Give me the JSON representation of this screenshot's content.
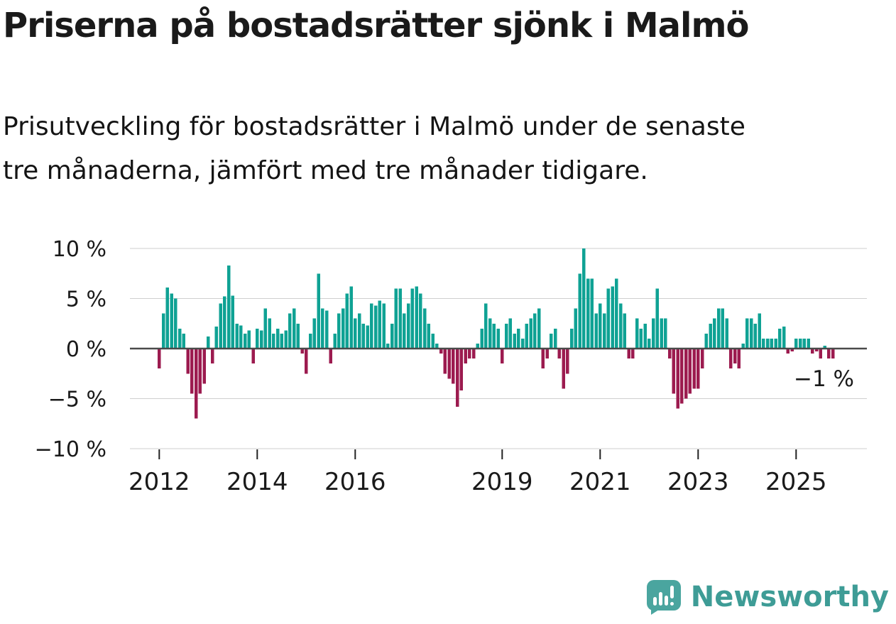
{
  "header": {
    "title": "Priserna på bostadsrätter sjönk i Malmö",
    "subtitle_lines": [
      "Prisutveckling för bostadsrätter i Malmö under de senaste",
      "tre månaderna, jämfört med tre månader tidigare."
    ]
  },
  "chart_data": {
    "type": "bar",
    "unit": "%",
    "frequency": "monthly",
    "start_month": "2012-01",
    "grid": true,
    "ylim": [
      -10,
      10
    ],
    "yticks": [
      {
        "label": "10 %",
        "value": 10
      },
      {
        "label": "5 %",
        "value": 5
      },
      {
        "label": "0 %",
        "value": 0
      },
      {
        "label": "−5 %",
        "value": -5
      },
      {
        "label": "−10 %",
        "value": -10
      }
    ],
    "xticks": [
      {
        "label": "2012",
        "year": 2012
      },
      {
        "label": "2014",
        "year": 2014
      },
      {
        "label": "2016",
        "year": 2016
      },
      {
        "label": "2019",
        "year": 2019
      },
      {
        "label": "2021",
        "year": 2021
      },
      {
        "label": "2023",
        "year": 2023
      },
      {
        "label": "2025",
        "year": 2025
      }
    ],
    "annotation": {
      "label": "−1 %",
      "value": -1
    },
    "colors": {
      "positive": "#0FA294",
      "negative": "#9C1B4F"
    },
    "values": [
      -2.0,
      3.5,
      6.1,
      5.5,
      5.0,
      2.0,
      1.5,
      -2.5,
      -4.5,
      -7.0,
      -4.5,
      -3.5,
      1.2,
      -1.5,
      2.2,
      4.5,
      5.2,
      8.3,
      5.3,
      2.5,
      2.3,
      1.5,
      1.8,
      -1.5,
      2.0,
      1.8,
      4.0,
      3.0,
      1.5,
      2.0,
      1.5,
      1.8,
      3.5,
      4.0,
      2.5,
      -0.5,
      -2.5,
      1.5,
      3.0,
      7.5,
      4.0,
      3.8,
      -1.5,
      1.5,
      3.5,
      4.0,
      5.5,
      6.2,
      3.0,
      3.5,
      2.5,
      2.3,
      4.5,
      4.3,
      4.8,
      4.5,
      0.5,
      2.5,
      6.0,
      6.0,
      3.5,
      4.5,
      6.0,
      6.2,
      5.5,
      4.0,
      2.5,
      1.5,
      0.5,
      -0.5,
      -2.5,
      -3.0,
      -3.5,
      -5.8,
      -4.2,
      -1.5,
      -1.0,
      -1.0,
      0.5,
      2.0,
      4.5,
      3.0,
      2.5,
      2.0,
      -1.5,
      2.5,
      3.0,
      1.5,
      2.0,
      1.0,
      2.5,
      3.0,
      3.5,
      4.0,
      -2.0,
      -1.0,
      1.5,
      2.0,
      -1.0,
      -4.0,
      -2.5,
      2.0,
      4.0,
      7.5,
      10.0,
      7.0,
      7.0,
      3.5,
      4.5,
      3.5,
      6.0,
      6.2,
      7.0,
      4.5,
      3.5,
      -1.0,
      -1.0,
      3.0,
      2.0,
      2.5,
      1.0,
      3.0,
      6.0,
      3.0,
      3.0,
      -1.0,
      -4.5,
      -6.0,
      -5.5,
      -5.0,
      -4.5,
      -4.0,
      -4.0,
      -2.0,
      1.5,
      2.5,
      3.0,
      4.0,
      4.0,
      3.0,
      -2.0,
      -1.5,
      -2.0,
      0.5,
      3.0,
      3.0,
      2.5,
      3.5,
      1.0,
      1.0,
      1.0,
      1.0,
      2.0,
      2.2,
      -0.5,
      -0.3,
      1.0,
      1.0,
      1.0,
      1.0,
      -0.5,
      -0.3,
      -1.0,
      0.3,
      -1.0,
      -1.0
    ]
  },
  "footer": {
    "brand": "Newsworthy",
    "brand_color": "#3E9C96",
    "icon_color": "#4AA59F"
  }
}
